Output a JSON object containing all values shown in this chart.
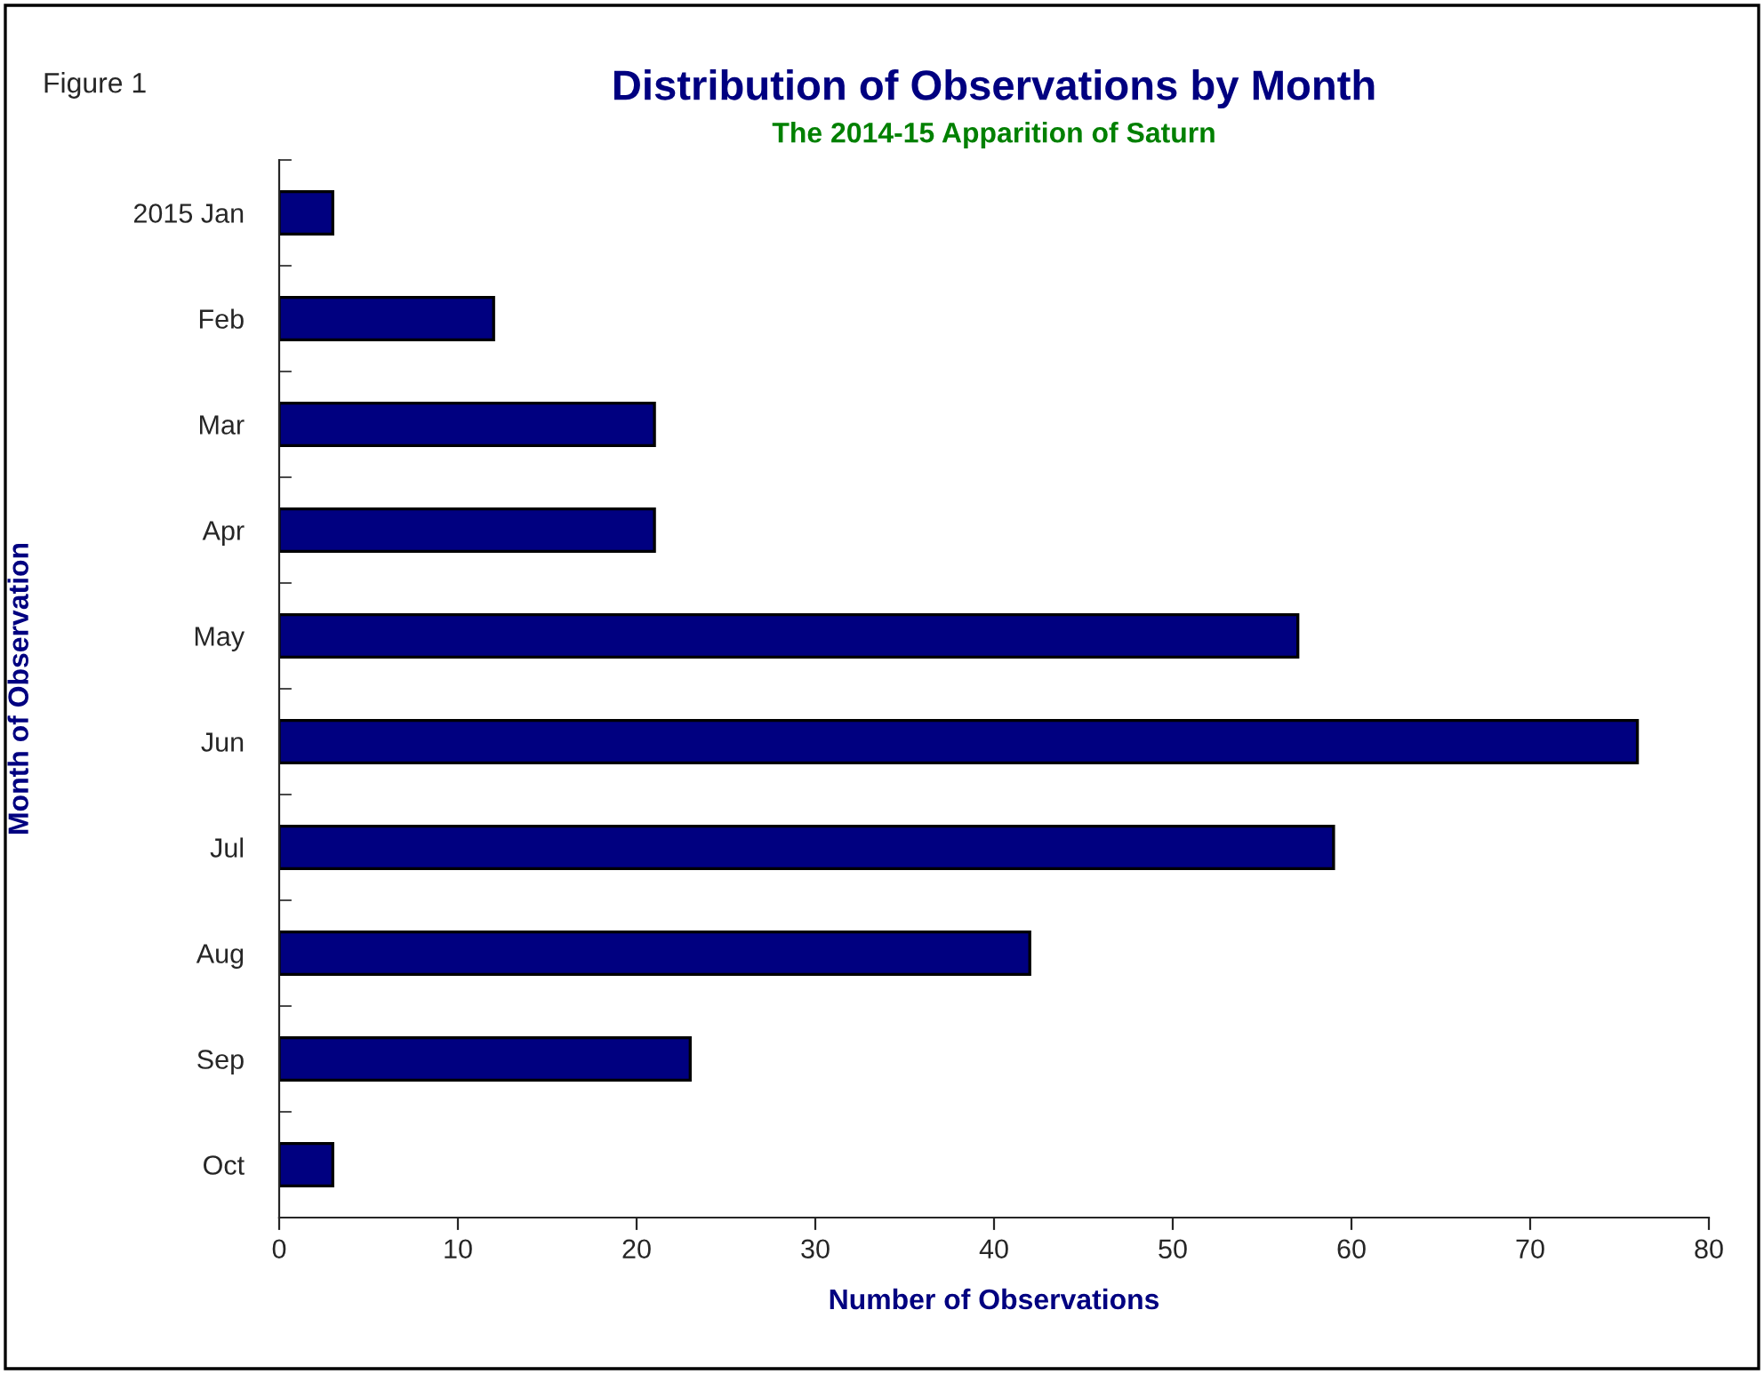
{
  "chart_data": {
    "type": "bar",
    "orientation": "horizontal",
    "title": "Distribution of Observations by Month",
    "subtitle": "The 2014-15 Apparition of Saturn",
    "xlabel": "Number of Observations",
    "ylabel": "Month of Observation",
    "annotations": [
      "Figure 1"
    ],
    "categories": [
      "2015 Jan",
      "Feb",
      "Mar",
      "Apr",
      "May",
      "Jun",
      "Jul",
      "Aug",
      "Sep",
      "Oct"
    ],
    "values": [
      3,
      12,
      21,
      21,
      57,
      76,
      59,
      42,
      23,
      3
    ],
    "color": "#000080",
    "xlim": [
      0,
      80
    ],
    "xticks": [
      0,
      10,
      20,
      30,
      40,
      50,
      60,
      70,
      80
    ],
    "grid": false,
    "legend": false
  }
}
